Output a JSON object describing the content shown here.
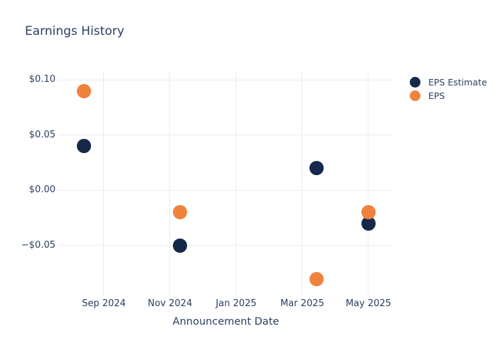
{
  "chart_data": {
    "type": "scatter",
    "title": "Earnings History",
    "xlabel": "Announcement Date",
    "ylabel": "",
    "grid": true,
    "legend_position": "right",
    "marker_size_px": 20,
    "x_dates": [
      "2024-08-13",
      "2024-11-10",
      "2025-03-14",
      "2025-05-01"
    ],
    "series": [
      {
        "name": "EPS Estimate",
        "color": "#15294a",
        "values": [
          0.04,
          -0.05,
          0.02,
          -0.03
        ]
      },
      {
        "name": "EPS",
        "color": "#ef833e",
        "values": [
          0.09,
          -0.02,
          -0.08,
          -0.02
        ]
      }
    ],
    "x_axis": {
      "tick_dates": [
        "2024-09-01",
        "2024-11-01",
        "2025-01-01",
        "2025-03-01",
        "2025-05-01"
      ],
      "tick_labels": [
        "Sep 2024",
        "Nov 2024",
        "Jan 2025",
        "Mar 2025",
        "May 2025"
      ],
      "range": [
        "2024-07-20",
        "2025-05-24"
      ]
    },
    "y_axis": {
      "ticks": [
        0.1,
        0.05,
        0.0,
        -0.05
      ],
      "tick_labels": [
        "$0.10",
        "$0.05",
        "$0.00",
        "−$0.05"
      ],
      "range": [
        -0.0951,
        0.1084
      ]
    },
    "colors": {
      "background": "#ffffff",
      "gridline": "#e8ecf4",
      "text": "#2a3f5f",
      "eps_estimate": "#15294a",
      "eps": "#ef833e"
    }
  }
}
